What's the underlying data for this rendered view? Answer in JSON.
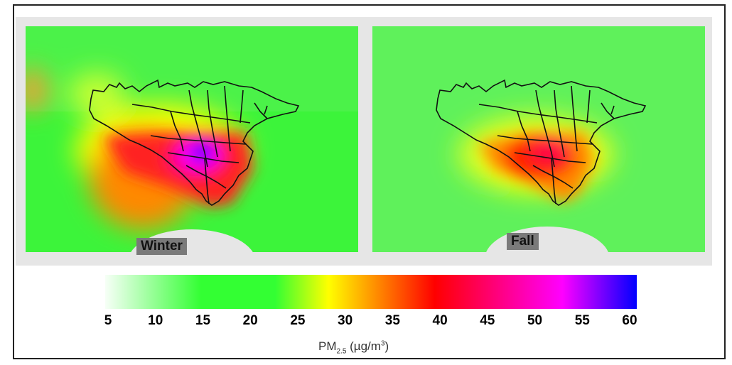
{
  "panels": [
    {
      "id": "winter",
      "label": "Winter",
      "peak": 60
    },
    {
      "id": "fall",
      "label": "Fall",
      "peak": 42
    }
  ],
  "legend": {
    "ticks": [
      "5",
      "10",
      "15",
      "20",
      "25",
      "30",
      "35",
      "40",
      "45",
      "50",
      "55",
      "60"
    ],
    "unit_main": "PM",
    "unit_sub": "2.5",
    "unit_rest": " (µg/m",
    "unit_sup": "3",
    "unit_end": ")",
    "min": 5,
    "max": 60
  },
  "colors": {
    "low": "#f7fff7",
    "green": "#33ff33",
    "yellow": "#ffff00",
    "orange": "#ff9900",
    "red": "#ff0000",
    "magenta": "#ff00ff",
    "blue": "#0000ff",
    "frame_bg": "#e6e6e6"
  }
}
